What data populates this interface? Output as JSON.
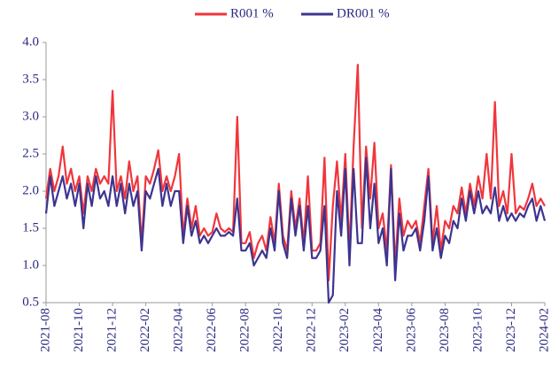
{
  "chart_data": {
    "type": "line",
    "categories": [
      "2021-08",
      null,
      null,
      null,
      null,
      null,
      null,
      null,
      "2021-10",
      null,
      null,
      null,
      null,
      null,
      null,
      null,
      "2021-12",
      null,
      null,
      null,
      null,
      null,
      null,
      null,
      "2022-02",
      null,
      null,
      null,
      null,
      null,
      null,
      null,
      "2022-04",
      null,
      null,
      null,
      null,
      null,
      null,
      null,
      "2022-06",
      null,
      null,
      null,
      null,
      null,
      null,
      null,
      "2022-08",
      null,
      null,
      null,
      null,
      null,
      null,
      null,
      "2022-10",
      null,
      null,
      null,
      null,
      null,
      null,
      null,
      "2022-12",
      null,
      null,
      null,
      null,
      null,
      null,
      null,
      "2023-02",
      null,
      null,
      null,
      null,
      null,
      null,
      null,
      "2023-04",
      null,
      null,
      null,
      null,
      null,
      null,
      null,
      "2023-06",
      null,
      null,
      null,
      null,
      null,
      null,
      null,
      "2023-08",
      null,
      null,
      null,
      null,
      null,
      null,
      null,
      "2023-10",
      null,
      null,
      null,
      null,
      null,
      null,
      null,
      "2023-12",
      null,
      null,
      null,
      null,
      null,
      null,
      null,
      "2024-02"
    ],
    "series": [
      {
        "name": "R001 %",
        "color": "#f0363c",
        "values": [
          1.9,
          2.3,
          2.0,
          2.2,
          2.6,
          2.1,
          2.3,
          2.0,
          2.2,
          1.7,
          2.2,
          2.0,
          2.3,
          2.1,
          2.2,
          2.1,
          3.35,
          2.0,
          2.2,
          1.9,
          2.4,
          2.0,
          2.2,
          1.3,
          2.2,
          2.1,
          2.3,
          2.55,
          2.0,
          2.2,
          2.0,
          2.2,
          2.5,
          1.4,
          1.9,
          1.5,
          1.8,
          1.4,
          1.5,
          1.4,
          1.45,
          1.7,
          1.5,
          1.45,
          1.5,
          1.45,
          3.0,
          1.3,
          1.3,
          1.45,
          1.1,
          1.3,
          1.4,
          1.2,
          1.65,
          1.3,
          2.1,
          1.4,
          1.2,
          2.0,
          1.5,
          1.9,
          1.3,
          2.2,
          1.2,
          1.2,
          1.3,
          2.45,
          0.8,
          1.8,
          2.4,
          1.6,
          2.5,
          1.2,
          2.6,
          3.7,
          1.5,
          2.6,
          1.9,
          2.65,
          1.5,
          1.7,
          1.2,
          2.35,
          1.0,
          1.9,
          1.4,
          1.6,
          1.5,
          1.6,
          1.3,
          1.8,
          2.3,
          1.3,
          1.8,
          1.2,
          1.6,
          1.5,
          1.8,
          1.7,
          2.05,
          1.7,
          2.1,
          1.8,
          2.2,
          1.9,
          2.5,
          1.9,
          3.2,
          1.8,
          2.0,
          1.7,
          2.5,
          1.7,
          1.8,
          1.75,
          1.9,
          2.1,
          1.8,
          1.9,
          1.8
        ]
      },
      {
        "name": "DR001 %",
        "color": "#3c3490",
        "values": [
          1.7,
          2.2,
          1.8,
          2.0,
          2.2,
          1.9,
          2.1,
          1.8,
          2.1,
          1.5,
          2.1,
          1.8,
          2.2,
          1.9,
          2.0,
          1.8,
          2.2,
          1.8,
          2.1,
          1.7,
          2.1,
          1.8,
          2.0,
          1.2,
          2.0,
          1.9,
          2.1,
          2.3,
          1.8,
          2.1,
          1.8,
          2.0,
          2.0,
          1.3,
          1.8,
          1.4,
          1.6,
          1.3,
          1.4,
          1.3,
          1.4,
          1.5,
          1.4,
          1.4,
          1.45,
          1.4,
          1.9,
          1.2,
          1.2,
          1.3,
          1.0,
          1.1,
          1.2,
          1.1,
          1.5,
          1.2,
          2.0,
          1.3,
          1.1,
          1.9,
          1.4,
          1.8,
          1.2,
          1.8,
          1.1,
          1.1,
          1.2,
          1.8,
          0.5,
          0.6,
          2.0,
          1.4,
          2.3,
          1.0,
          2.3,
          1.3,
          1.3,
          2.45,
          1.5,
          2.1,
          1.3,
          1.5,
          1.0,
          2.3,
          0.8,
          1.7,
          1.2,
          1.4,
          1.4,
          1.5,
          1.2,
          1.6,
          2.2,
          1.2,
          1.5,
          1.1,
          1.4,
          1.3,
          1.6,
          1.5,
          1.9,
          1.6,
          2.0,
          1.7,
          2.0,
          1.7,
          1.8,
          1.7,
          2.05,
          1.6,
          1.8,
          1.6,
          1.7,
          1.6,
          1.7,
          1.65,
          1.8,
          1.9,
          1.6,
          1.8,
          1.6
        ]
      }
    ],
    "ylim": [
      0.5,
      4.0
    ],
    "yticks": [
      0.5,
      {
        "value": 1,
        "label": "1.0"
      },
      1.5,
      {
        "value": 2,
        "label": "2.0"
      },
      2.5,
      {
        "value": 3,
        "label": "3.0"
      },
      3.5,
      {
        "value": 4,
        "label": "4.0"
      }
    ],
    "legend": "top",
    "grid": false
  }
}
